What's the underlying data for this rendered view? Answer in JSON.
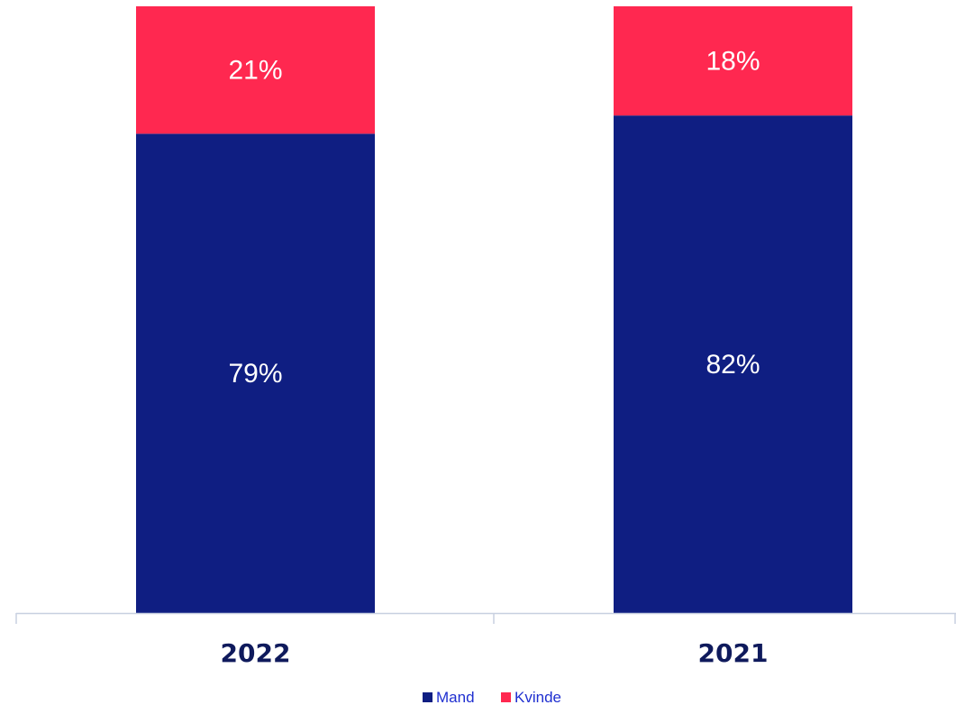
{
  "chart_data": {
    "type": "bar",
    "stacked": true,
    "categories": [
      "2022",
      "2021"
    ],
    "series": [
      {
        "name": "Mand",
        "values": [
          79,
          82
        ],
        "labels": [
          "79%",
          "82%"
        ],
        "color": "#0f1e82"
      },
      {
        "name": "Kvinde",
        "values": [
          21,
          18
        ],
        "labels": [
          "21%",
          "18%"
        ],
        "color": "#ff2850"
      }
    ],
    "ylim": [
      0,
      100
    ],
    "grid": false,
    "legend_position": "bottom-center",
    "category_label_color": "#0f1a5c",
    "legend_text_color": "#1f2fd0",
    "axis_color": "#c8d0e0"
  }
}
